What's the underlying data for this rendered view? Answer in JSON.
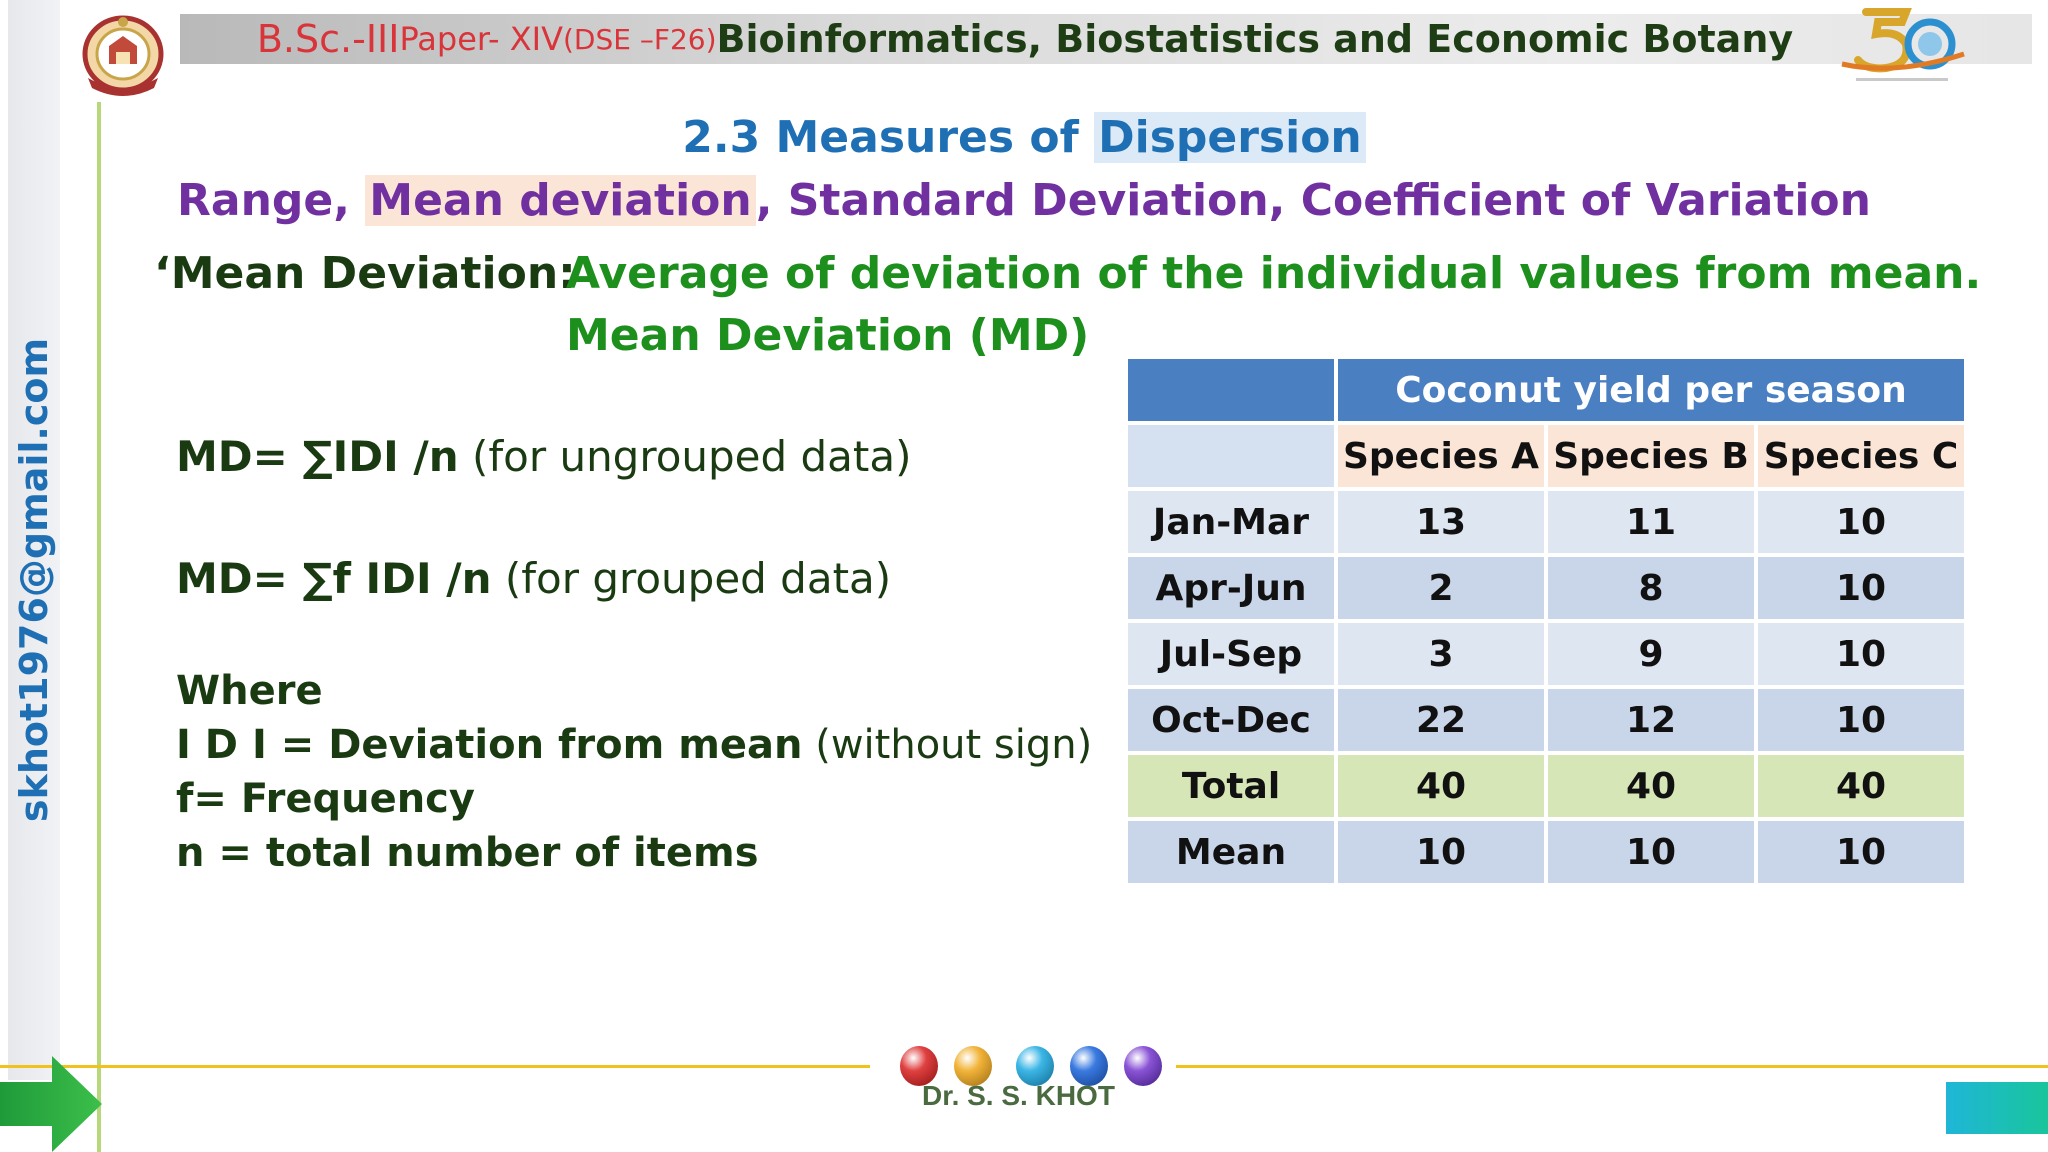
{
  "header": {
    "part1": "B.Sc.-III ",
    "part2": "Paper- XIV ",
    "part3": "(DSE –F26) ",
    "part4": "Bioinformatics, Biostatistics and Economic Botany"
  },
  "sidebar": {
    "email": "skhot1976@gmail.com"
  },
  "title": {
    "line1_pre": "2.3 Measures of ",
    "line1_hl": "Dispersion",
    "line2_pre": "Range, ",
    "line2_hl": "Mean deviation",
    "line2_post": ", Standard Deviation, Coefficient of Variation"
  },
  "definition": {
    "label": "‘Mean Deviation:",
    "text1": "Average of deviation of the individual values from mean.",
    "text2": "Mean Deviation (MD)"
  },
  "formulas": {
    "f1": "MD= ∑IDI /n",
    "f1_note": " (for ungrouped data)",
    "f2": "MD= ∑f IDI /n",
    "f2_note": " (for grouped data)"
  },
  "where": {
    "title": "Where",
    "d_label": "I D I = Deviation from mean",
    "d_note": " (without sign)",
    "f_label": "f= Frequency",
    "n_label": "n = total number of items"
  },
  "table": {
    "title": "Coconut yield per season",
    "headers": [
      "Species A",
      "Species B",
      "Species C"
    ],
    "rows": [
      {
        "label": "Jan-Mar",
        "values": [
          "13",
          "11",
          "10"
        ]
      },
      {
        "label": "Apr-Jun",
        "values": [
          "2",
          "8",
          "10"
        ]
      },
      {
        "label": "Jul-Sep",
        "values": [
          "3",
          "9",
          "10"
        ]
      },
      {
        "label": "Oct-Dec",
        "values": [
          "22",
          "12",
          "10"
        ]
      },
      {
        "label": "Total",
        "values": [
          "40",
          "40",
          "40"
        ]
      },
      {
        "label": "Mean",
        "values": [
          "10",
          "10",
          "10"
        ]
      }
    ]
  },
  "footer": {
    "author": "Dr. S. S. KHOT"
  },
  "colors": {
    "accent_blue": "#1f6fb4",
    "accent_purple": "#7030a0",
    "accent_green": "#1d8f1d",
    "header_red": "#d9343a",
    "table_header": "#4a7fc1"
  }
}
